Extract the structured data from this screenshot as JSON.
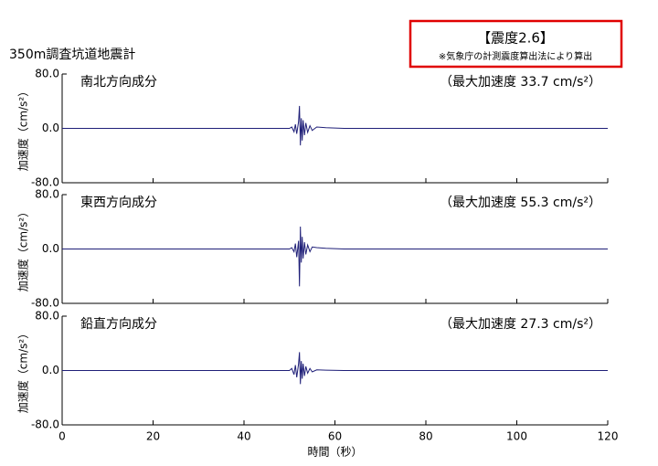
{
  "header": {
    "title": "350m調査坑道地震計",
    "intensity": "【震度2.6】",
    "note": "※気象庁の計測震度算出法により算出"
  },
  "chart_data": [
    {
      "type": "line",
      "title": "南北方向成分",
      "annotation": "（最大加速度 33.7 cm/s²）",
      "ylabel": "加速度（cm/s²）",
      "xlim": [
        0,
        120
      ],
      "ylim": [
        -80,
        80
      ],
      "yticks": [
        {
          "value": 80,
          "label": "80.0"
        },
        {
          "value": 0,
          "label": "0.0"
        },
        {
          "value": -80,
          "label": "-80.0"
        }
      ],
      "xticks": [
        0,
        20,
        40,
        60,
        80,
        100,
        120
      ],
      "x": [
        0,
        50,
        50.5,
        51,
        51.3,
        51.6,
        52,
        52.2,
        52.4,
        52.6,
        52.8,
        53,
        53.3,
        53.6,
        54,
        54.5,
        55,
        56,
        58,
        62,
        120
      ],
      "series": [
        {
          "color": "#1f1f78",
          "values": [
            0,
            0,
            2,
            -5,
            6,
            -8,
            10,
            33,
            -25,
            15,
            -18,
            12,
            -10,
            8,
            -6,
            4,
            -3,
            2,
            1,
            0,
            0
          ]
        }
      ]
    },
    {
      "type": "line",
      "title": "東西方向成分",
      "annotation": "（最大加速度 55.3 cm/s²）",
      "ylabel": "加速度（cm/s²）",
      "xlim": [
        0,
        120
      ],
      "ylim": [
        -80,
        80
      ],
      "yticks": [
        {
          "value": 80,
          "label": "80.0"
        },
        {
          "value": 0,
          "label": "0.0"
        },
        {
          "value": -80,
          "label": "-80.0"
        }
      ],
      "xticks": [
        0,
        20,
        40,
        60,
        80,
        100,
        120
      ],
      "x": [
        0,
        50,
        50.5,
        51,
        51.3,
        51.6,
        52,
        52.2,
        52.4,
        52.6,
        52.8,
        53,
        53.3,
        53.6,
        54,
        54.5,
        55,
        56,
        58,
        62,
        120
      ],
      "series": [
        {
          "color": "#1f1f78",
          "values": [
            0,
            0,
            2,
            -4,
            8,
            -12,
            12,
            -55,
            33,
            -20,
            18,
            -14,
            10,
            -8,
            6,
            -4,
            3,
            2,
            1,
            0,
            0
          ]
        }
      ]
    },
    {
      "type": "line",
      "title": "鉛直方向成分",
      "annotation": "（最大加速度 27.3 cm/s²）",
      "ylabel": "加速度（cm/s²）",
      "xlabel": "時間（秒）",
      "xlim": [
        0,
        120
      ],
      "ylim": [
        -80,
        80
      ],
      "yticks": [
        {
          "value": 80,
          "label": "80.0"
        },
        {
          "value": 0,
          "label": "0.0"
        },
        {
          "value": -80,
          "label": "-80.0"
        }
      ],
      "xticks": [
        0,
        20,
        40,
        60,
        80,
        100,
        120
      ],
      "x": [
        0,
        50,
        50.5,
        51,
        51.3,
        51.6,
        52,
        52.2,
        52.4,
        52.6,
        52.8,
        53,
        53.3,
        53.6,
        54,
        54.5,
        55,
        56,
        58,
        62,
        120
      ],
      "series": [
        {
          "color": "#1f1f78",
          "values": [
            0,
            0,
            3,
            -6,
            8,
            -10,
            10,
            27,
            -20,
            14,
            -12,
            10,
            -8,
            6,
            -4,
            3,
            -2,
            1,
            0.5,
            0,
            0
          ]
        }
      ]
    }
  ]
}
